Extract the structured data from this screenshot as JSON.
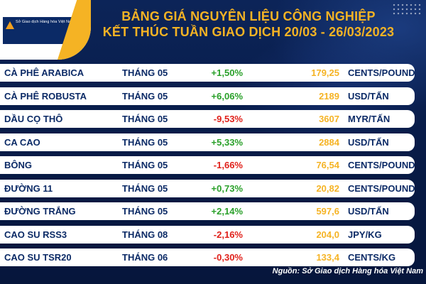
{
  "header": {
    "title_line1": "BẢNG GIÁ NGUYÊN LIỆU CÔNG NGHIỆP",
    "title_line2": "KẾT THÚC TUẦN GIAO DỊCH 20/03 - 26/03/2023"
  },
  "logo": {
    "text": "Sở Giao dịch Hàng hóa Việt Nam"
  },
  "colors": {
    "background": "#0a1e4a",
    "accent": "#f5b324",
    "positive": "#2aa02a",
    "negative": "#e0201a",
    "text": "#0b2a66"
  },
  "rows": [
    {
      "name": "CÀ PHÊ ARABICA",
      "month": "THÁNG 05",
      "change": "+1,50%",
      "direction": "up",
      "price": "179,25",
      "unit": "CENTS/POUND"
    },
    {
      "name": "CÀ PHÊ ROBUSTA",
      "month": "THÁNG 05",
      "change": "+6,06%",
      "direction": "up",
      "price": "2189",
      "unit": "USD/TẤN"
    },
    {
      "name": "DẦU CỌ THÔ",
      "month": "THÁNG 05",
      "change": "-9,53%",
      "direction": "down",
      "price": "3607",
      "unit": "MYR/TẤN"
    },
    {
      "name": "CA CAO",
      "month": "THÁNG 05",
      "change": "+5,33%",
      "direction": "up",
      "price": "2884",
      "unit": "USD/TẤN"
    },
    {
      "name": "BÔNG",
      "month": "THÁNG 05",
      "change": "-1,66%",
      "direction": "down",
      "price": "76,54",
      "unit": "CENTS/POUND"
    },
    {
      "name": "ĐƯỜNG 11",
      "month": "THÁNG 05",
      "change": "+0,73%",
      "direction": "up",
      "price": "20,82",
      "unit": "CENTS/POUND"
    },
    {
      "name": "ĐƯỜNG TRẮNG",
      "month": "THÁNG 05",
      "change": "+2,14%",
      "direction": "up",
      "price": "597,6",
      "unit": "USD/TẤN"
    },
    {
      "name": "CAO SU RSS3",
      "month": "THÁNG 08",
      "change": "-2,16%",
      "direction": "down",
      "price": "204,0",
      "unit": "JPY/KG"
    },
    {
      "name": "CAO SU TSR20",
      "month": "THÁNG 06",
      "change": "-0,30%",
      "direction": "down",
      "price": "133,4",
      "unit": "CENTS/KG"
    }
  ],
  "footer": {
    "source": "Nguồn: Sở Giao dịch Hàng hóa Việt Nam"
  }
}
